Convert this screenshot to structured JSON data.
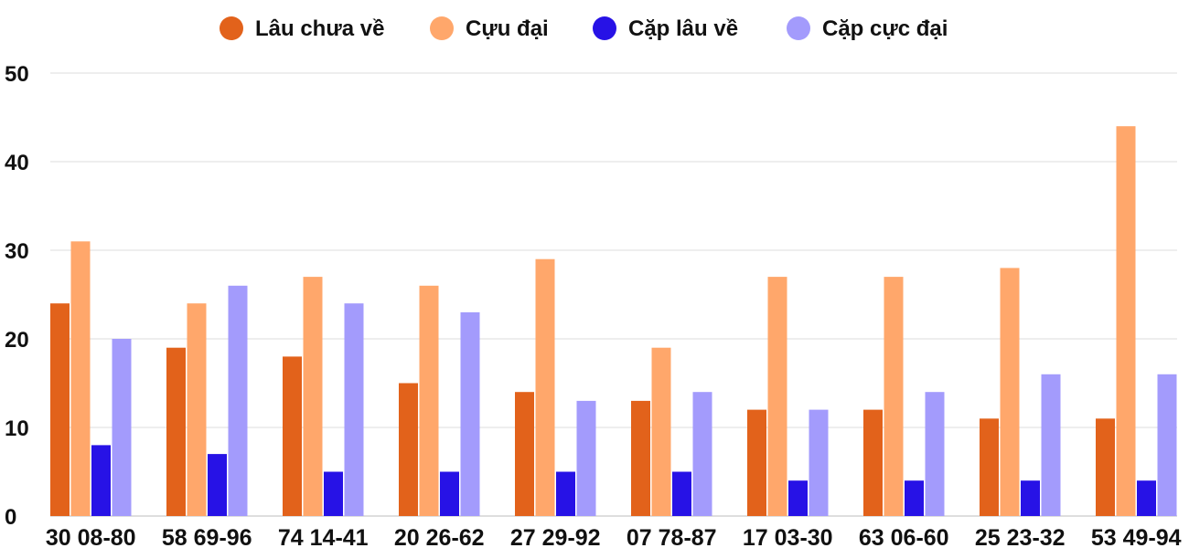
{
  "chart_data": {
    "type": "bar",
    "categories": [
      "30 08-80",
      "58 69-96",
      "74 14-41",
      "20 26-62",
      "27 29-92",
      "07 78-87",
      "17 03-30",
      "63 06-60",
      "25 23-32",
      "53 49-94"
    ],
    "series": [
      {
        "name": "Lâu chưa về",
        "color": "#e2621b",
        "values": [
          24,
          19,
          18,
          15,
          14,
          13,
          12,
          12,
          11,
          11
        ]
      },
      {
        "name": "Cựu đại",
        "color": "#ffa76b",
        "values": [
          31,
          24,
          27,
          26,
          29,
          19,
          27,
          27,
          28,
          44
        ]
      },
      {
        "name": "Cặp lâu về",
        "color": "#2712e6",
        "values": [
          8,
          7,
          5,
          5,
          5,
          5,
          4,
          4,
          4,
          4
        ]
      },
      {
        "name": "Cặp cực đại",
        "color": "#a39bfc",
        "values": [
          20,
          26,
          24,
          23,
          13,
          14,
          12,
          14,
          16,
          16
        ]
      }
    ],
    "yticks": [
      0,
      10,
      20,
      30,
      40,
      50
    ],
    "ylim": [
      0,
      50
    ],
    "grid": true,
    "legend": "top-center"
  }
}
